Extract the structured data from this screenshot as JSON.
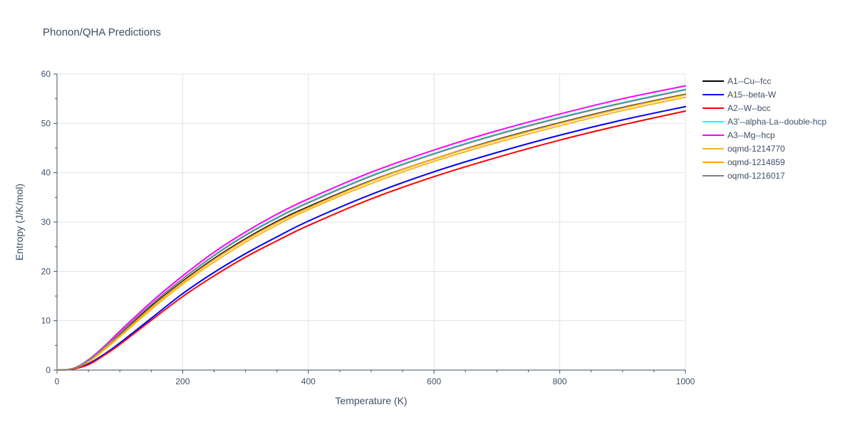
{
  "chart_data": {
    "type": "line",
    "title": "Phonon/QHA Predictions",
    "xlabel": "Temperature (K)",
    "ylabel": "Entropy (J/K/mol)",
    "xlim": [
      0,
      1000
    ],
    "ylim": [
      0,
      60
    ],
    "xticks": [
      0,
      200,
      400,
      600,
      800,
      1000
    ],
    "yticks": [
      0,
      10,
      20,
      30,
      40,
      50,
      60
    ],
    "xtick_labels": [
      "0",
      "200",
      "400",
      "600",
      "800",
      "1000"
    ],
    "ytick_labels": [
      "0",
      "10",
      "20",
      "30",
      "40",
      "50",
      "60"
    ],
    "grid": true,
    "legend_position": "right",
    "x": [
      0,
      25,
      50,
      75,
      100,
      150,
      200,
      250,
      300,
      350,
      400,
      500,
      600,
      700,
      800,
      900,
      1000
    ],
    "series": [
      {
        "name": "A1--Cu--fcc",
        "color": "#000000",
        "values": [
          0,
          0.3,
          1.9,
          4.4,
          7.2,
          12.9,
          18.0,
          22.6,
          26.6,
          30.1,
          33.1,
          38.4,
          42.8,
          46.7,
          50.1,
          53.2,
          55.9
        ]
      },
      {
        "name": "A15--beta-W",
        "color": "#0000ff",
        "values": [
          0,
          0.2,
          1.3,
          3.2,
          5.5,
          10.5,
          15.5,
          19.8,
          23.6,
          27.0,
          30.2,
          35.6,
          40.2,
          44.1,
          47.6,
          50.7,
          53.4
        ]
      },
      {
        "name": "A2--W--bcc",
        "color": "#ff0000",
        "values": [
          0,
          0.2,
          1.1,
          3.0,
          5.2,
          10.1,
          14.9,
          19.1,
          22.9,
          26.2,
          29.3,
          34.7,
          39.2,
          43.1,
          46.6,
          49.7,
          52.5
        ]
      },
      {
        "name": "A3'--alpha-La--double-hcp",
        "color": "#00ffff",
        "values": [
          0,
          0.3,
          2.0,
          4.6,
          7.5,
          13.3,
          18.5,
          23.3,
          27.4,
          30.9,
          34.0,
          39.4,
          43.9,
          47.8,
          51.2,
          54.2,
          56.9
        ]
      },
      {
        "name": "A3--Mg--hcp",
        "color": "#ff00ff",
        "values": [
          0,
          0.3,
          2.1,
          4.8,
          7.9,
          13.8,
          19.1,
          23.9,
          28.0,
          31.6,
          34.7,
          40.1,
          44.6,
          48.5,
          51.9,
          55.0,
          57.6
        ]
      },
      {
        "name": "oqmd-1214770",
        "color": "#f5b52a",
        "values": [
          0,
          0.3,
          1.7,
          4.1,
          6.8,
          12.3,
          17.4,
          21.9,
          25.9,
          29.4,
          32.5,
          37.8,
          42.3,
          46.1,
          49.5,
          52.6,
          55.3
        ]
      },
      {
        "name": "oqmd-1214859",
        "color": "#ffa500",
        "values": [
          0,
          0.3,
          1.8,
          4.3,
          7.0,
          12.7,
          17.8,
          22.4,
          26.4,
          29.9,
          32.9,
          38.3,
          42.8,
          46.6,
          50.0,
          53.1,
          55.8
        ]
      },
      {
        "name": "oqmd-1216017",
        "color": "#808080",
        "values": [
          0,
          0.3,
          2.0,
          4.6,
          7.5,
          13.3,
          18.5,
          23.2,
          27.3,
          30.8,
          33.9,
          39.3,
          43.8,
          47.7,
          51.1,
          54.1,
          56.8
        ]
      }
    ]
  }
}
